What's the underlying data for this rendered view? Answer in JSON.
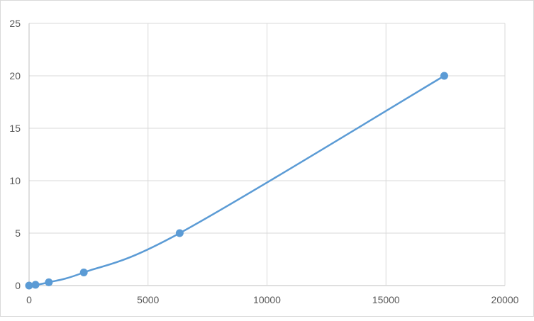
{
  "chart_data": {
    "type": "scatter",
    "title": "",
    "xlabel": "",
    "ylabel": "",
    "xlim": [
      0,
      20000
    ],
    "ylim": [
      0,
      25
    ],
    "x_ticks": [
      "0",
      "5000",
      "10000",
      "15000",
      "20000"
    ],
    "y_ticks": [
      "0",
      "5",
      "10",
      "15",
      "20",
      "25"
    ],
    "grid": true,
    "smooth_line": true,
    "color": "#5b9bd5",
    "series": [
      {
        "x": [
          0,
          270,
          830,
          2300,
          6330,
          17450
        ],
        "y": [
          0,
          0.078,
          0.312,
          1.25,
          5,
          20
        ]
      }
    ]
  }
}
